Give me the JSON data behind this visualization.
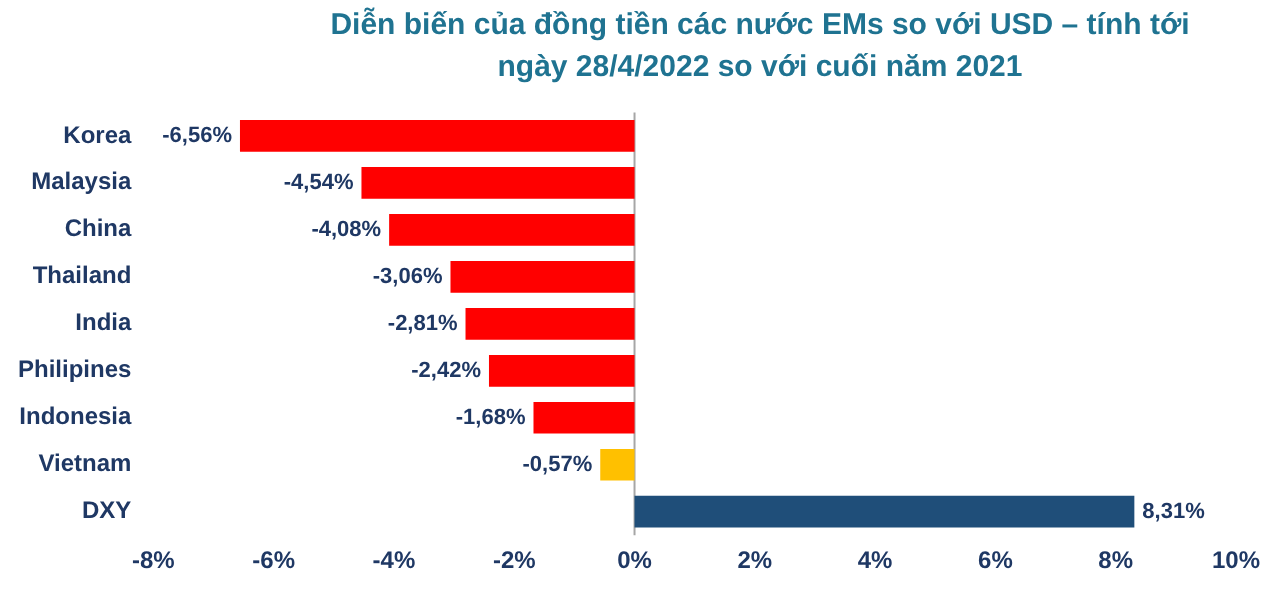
{
  "chart_data": {
    "type": "bar",
    "orientation": "horizontal",
    "title": "Diễn biến của đồng tiền các nước EMs so với USD – tính tới ngày 28/4/2022 so với cuối năm 2021",
    "categories": [
      "Korea",
      "Malaysia",
      "China",
      "Thailand",
      "India",
      "Philipines",
      "Indonesia",
      "Vietnam",
      "DXY"
    ],
    "values": [
      -6.56,
      -4.54,
      -4.08,
      -3.06,
      -2.81,
      -2.42,
      -1.68,
      -0.57,
      8.31
    ],
    "colors": [
      "#ff0000",
      "#ff0000",
      "#ff0000",
      "#ff0000",
      "#ff0000",
      "#ff0000",
      "#ff0000",
      "#ffc000",
      "#1f4e79"
    ],
    "value_labels": [
      "-6,56%",
      "-4,54%",
      "-4,08%",
      "-3,06%",
      "-2,81%",
      "-2,42%",
      "-1,68%",
      "-0,57%",
      "8,31%"
    ],
    "xlim": [
      -8,
      10
    ],
    "xticks": [
      {
        "value": -8,
        "label": "-8%"
      },
      {
        "value": -6,
        "label": "-6%"
      },
      {
        "value": -4,
        "label": "-4%"
      },
      {
        "value": -2,
        "label": "-2%"
      },
      {
        "value": 0,
        "label": "0%"
      },
      {
        "value": 2,
        "label": "2%"
      },
      {
        "value": 4,
        "label": "4%"
      },
      {
        "value": 6,
        "label": "6%"
      },
      {
        "value": 8,
        "label": "8%"
      },
      {
        "value": 10,
        "label": "10%"
      }
    ],
    "ref_lines": [
      {
        "axis": "x",
        "value": 0,
        "color": "#a6a6a6"
      }
    ],
    "grid": false,
    "legend": false
  }
}
